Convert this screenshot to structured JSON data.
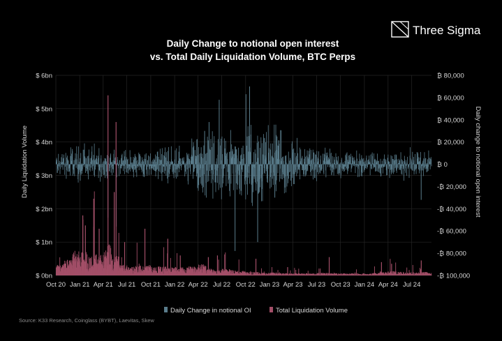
{
  "brand": {
    "name": "Three Sigma",
    "logo_icon": "three-sigma-logo-icon"
  },
  "source_text": "Source: K33 Research, Coinglass (BYBT), Laevitas, Skew",
  "chart_data": {
    "type": "bar",
    "title_lines": [
      "Daily Change to notional open interest",
      "vs. Total Daily Liquidation Volume, BTC Perps"
    ],
    "xlabel": "",
    "ylabel_left": "Daily Liquidation Volume",
    "ylabel_right": "Daily change to notional open interest",
    "x_range": [
      "2020-10-01",
      "2024-09-15"
    ],
    "x_tick_labels": [
      "Oct 20",
      "Jan 21",
      "Apr 21",
      "Jul 21",
      "Oct 21",
      "Jan 22",
      "Apr 22",
      "Jul 22",
      "Oct 22",
      "Jan 23",
      "Apr 23",
      "Jul 23",
      "Oct 23",
      "Jan 24",
      "Apr 24",
      "Jul 24"
    ],
    "y_left": {
      "min": 0,
      "max": 6,
      "tick_values": [
        0,
        1,
        2,
        3,
        4,
        5,
        6
      ],
      "tick_labels": [
        "$ 0bn",
        "$ 1bn",
        "$ 2bn",
        "$ 3bn",
        "$ 4bn",
        "$ 5bn",
        "$ 6bn"
      ]
    },
    "y_right": {
      "min": -100000,
      "max": 80000,
      "tick_values": [
        80000,
        60000,
        40000,
        20000,
        0,
        -20000,
        -40000,
        -60000,
        -80000,
        -100000
      ],
      "tick_labels": [
        "₿ 80,000",
        "₿ 60,000",
        "₿ 40,000",
        "₿ 20,000",
        "₿ 0",
        "-₿ 20,000",
        "-₿ 40,000",
        "-₿ 60,000",
        "-₿ 80,000",
        "-₿ 100,000"
      ]
    },
    "grid": true,
    "legend_position": "bottom-center",
    "series": [
      {
        "name": "Daily Change in notional OI",
        "axis": "right",
        "color": "#5a7d8c",
        "monthly_amplitude_btc": [
          12000,
          14000,
          15000,
          16000,
          15000,
          13000,
          14000,
          12000,
          12000,
          11000,
          12000,
          11000,
          12000,
          14000,
          15000,
          14000,
          15000,
          22000,
          25000,
          26000,
          28000,
          24000,
          30000,
          28000,
          34000,
          30000,
          35000,
          30000,
          26000,
          22000,
          20000,
          16000,
          14000,
          13000,
          12000,
          12000,
          11000,
          10000,
          11000,
          10000,
          10000,
          9000,
          10000,
          10000,
          12000,
          13000,
          12000,
          12000
        ],
        "notable_spikes": [
          {
            "date": "2022-10-15",
            "value": 70000
          },
          {
            "date": "2022-10-01",
            "value": 63000
          },
          {
            "date": "2022-08-20",
            "value": -78000
          },
          {
            "date": "2022-11-15",
            "value": -70000
          },
          {
            "date": "2022-06-20",
            "value": 58000
          },
          {
            "date": "2022-04-25",
            "value": 30000
          },
          {
            "date": "2021-04-18",
            "value": -48000
          },
          {
            "date": "2021-05-20",
            "value": -56000
          },
          {
            "date": "2022-05-12",
            "value": 38000
          },
          {
            "date": "2023-01-20",
            "value": -30000
          },
          {
            "date": "2024-08-05",
            "value": -32000
          }
        ]
      },
      {
        "name": "Total Liquidation Volume",
        "axis": "left",
        "color": "#a34f68",
        "unit": "$ bn",
        "monthly_baseline_bn": [
          0.25,
          0.35,
          0.55,
          0.55,
          0.45,
          0.5,
          0.7,
          0.45,
          0.25,
          0.2,
          0.22,
          0.25,
          0.2,
          0.2,
          0.18,
          0.2,
          0.2,
          0.2,
          0.25,
          0.15,
          0.12,
          0.15,
          0.12,
          0.1,
          0.08,
          0.08,
          0.06,
          0.07,
          0.05,
          0.05,
          0.05,
          0.05,
          0.05,
          0.06,
          0.06,
          0.05,
          0.05,
          0.05,
          0.05,
          0.04,
          0.07,
          0.08,
          0.1,
          0.08,
          0.07,
          0.07,
          0.08,
          0.06
        ],
        "notable_spikes": [
          {
            "date": "2021-04-18",
            "value": 5.4
          },
          {
            "date": "2021-05-19",
            "value": 4.6
          },
          {
            "date": "2021-05-12",
            "value": 2.5
          },
          {
            "date": "2021-02-22",
            "value": 2.3
          },
          {
            "date": "2021-01-11",
            "value": 1.8
          },
          {
            "date": "2021-01-21",
            "value": 1.5
          },
          {
            "date": "2021-03-15",
            "value": 1.4
          },
          {
            "date": "2021-09-07",
            "value": 1.4
          },
          {
            "date": "2021-06-21",
            "value": 1.0
          },
          {
            "date": "2021-12-04",
            "value": 1.1
          },
          {
            "date": "2022-01-21",
            "value": 0.6
          },
          {
            "date": "2022-05-09",
            "value": 0.55
          },
          {
            "date": "2022-06-13",
            "value": 0.6
          },
          {
            "date": "2022-11-08",
            "value": 0.5
          },
          {
            "date": "2023-03-10",
            "value": 0.25
          },
          {
            "date": "2023-08-17",
            "value": 0.55
          },
          {
            "date": "2024-03-05",
            "value": 0.4
          },
          {
            "date": "2024-04-13",
            "value": 0.35
          },
          {
            "date": "2024-08-05",
            "value": 0.45
          }
        ]
      }
    ]
  }
}
